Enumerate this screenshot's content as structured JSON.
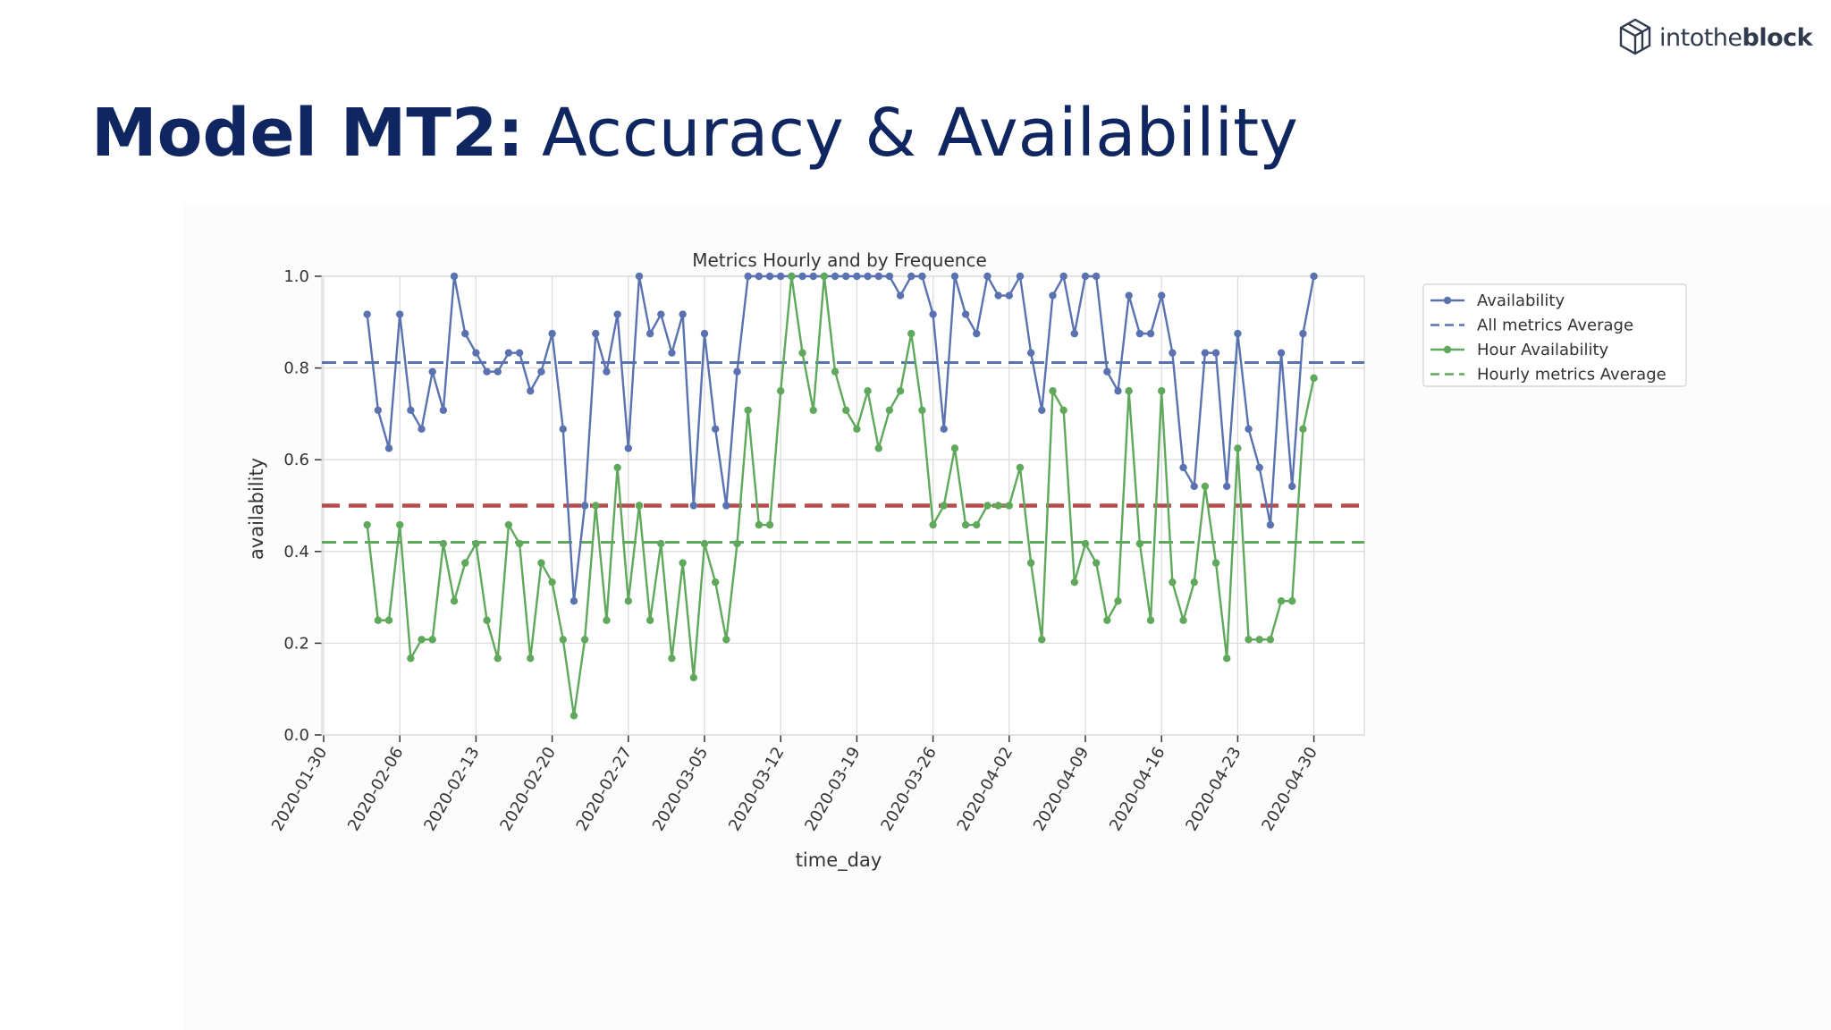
{
  "brand": {
    "name_part1": "intothe",
    "name_part2": "block"
  },
  "page": {
    "title_bold": "Model MT2:",
    "title_light": "Accuracy & Availability"
  },
  "colors": {
    "availability": "#5a72b0",
    "hour_availability": "#5fa85c",
    "all_avg": "#5a72b0",
    "hourly_avg": "#5fa85c",
    "threshold": "#b74a4a",
    "grid": "#dddddd",
    "title": "#0f2660"
  },
  "chart_data": {
    "type": "line",
    "title": "Metrics Hourly and by Frequence",
    "xlabel": "time_day",
    "ylabel": "availability",
    "ylim": [
      0,
      1.0
    ],
    "yticks": [
      "0.0",
      "0.2",
      "0.4",
      "0.6",
      "0.8",
      "1.0"
    ],
    "xticks": [
      "2020-01-30",
      "2020-02-06",
      "2020-02-13",
      "2020-02-20",
      "2020-02-27",
      "2020-03-05",
      "2020-03-12",
      "2020-03-19",
      "2020-03-26",
      "2020-04-02",
      "2020-04-09",
      "2020-04-16",
      "2020-04-23",
      "2020-04-30"
    ],
    "x_start_day": 4,
    "x_end_day": 91,
    "series": [
      {
        "name": "Availability",
        "style": "line-marker",
        "values": [
          0.917,
          0.708,
          0.625,
          0.917,
          0.708,
          0.667,
          0.792,
          0.708,
          1.0,
          0.875,
          0.833,
          0.792,
          0.792,
          0.833,
          0.833,
          0.75,
          0.792,
          0.875,
          0.667,
          0.292,
          0.5,
          0.875,
          0.792,
          0.917,
          0.625,
          1.0,
          0.875,
          0.917,
          0.833,
          0.917,
          0.5,
          0.875,
          0.667,
          0.5,
          0.792,
          1.0,
          1.0,
          1.0,
          1.0,
          1.0,
          1.0,
          1.0,
          1.0,
          1.0,
          1.0,
          1.0,
          1.0,
          1.0,
          1.0,
          0.958,
          1.0,
          1.0,
          0.917,
          0.667,
          1.0,
          0.917,
          0.875,
          1.0,
          0.958,
          0.958,
          1.0,
          0.833,
          0.708,
          0.958,
          1.0,
          0.875,
          1.0,
          1.0,
          0.792,
          0.75,
          0.958,
          0.875,
          0.875,
          0.958,
          0.833,
          0.583,
          0.542,
          0.833,
          0.833,
          0.542,
          0.875,
          0.667,
          0.583,
          0.458,
          0.833,
          0.542,
          0.875,
          1.0
        ]
      },
      {
        "name": "Hour Availability",
        "style": "line-marker",
        "values": [
          0.458,
          0.25,
          0.25,
          0.458,
          0.167,
          0.208,
          0.208,
          0.417,
          0.292,
          0.375,
          0.417,
          0.25,
          0.167,
          0.458,
          0.417,
          0.167,
          0.375,
          0.333,
          0.208,
          0.042,
          0.208,
          0.5,
          0.25,
          0.583,
          0.292,
          0.5,
          0.25,
          0.417,
          0.167,
          0.375,
          0.125,
          0.417,
          0.333,
          0.208,
          0.417,
          0.708,
          0.458,
          0.458,
          0.75,
          1.0,
          0.833,
          0.708,
          1.0,
          0.792,
          0.708,
          0.667,
          0.75,
          0.625,
          0.708,
          0.75,
          0.875,
          0.708,
          0.458,
          0.5,
          0.625,
          0.458,
          0.458,
          0.5,
          0.5,
          0.5,
          0.583,
          0.375,
          0.208,
          0.75,
          0.708,
          0.333,
          0.417,
          0.375,
          0.25,
          0.292,
          0.75,
          0.417,
          0.25,
          0.75,
          0.333,
          0.25,
          0.333,
          0.542,
          0.375,
          0.167,
          0.625,
          0.208,
          0.208,
          0.208,
          0.292,
          0.292,
          0.667,
          0.778
        ]
      }
    ],
    "reference_lines": [
      {
        "name": "All metrics Average",
        "value": 0.812
      },
      {
        "name": "Hourly metrics Average",
        "value": 0.42
      },
      {
        "name": "threshold",
        "value": 0.5
      }
    ],
    "legend": [
      "Availability",
      "All metrics Average",
      "Hour Availability",
      "Hourly metrics Average"
    ],
    "legend_position": "outside-top-right"
  }
}
